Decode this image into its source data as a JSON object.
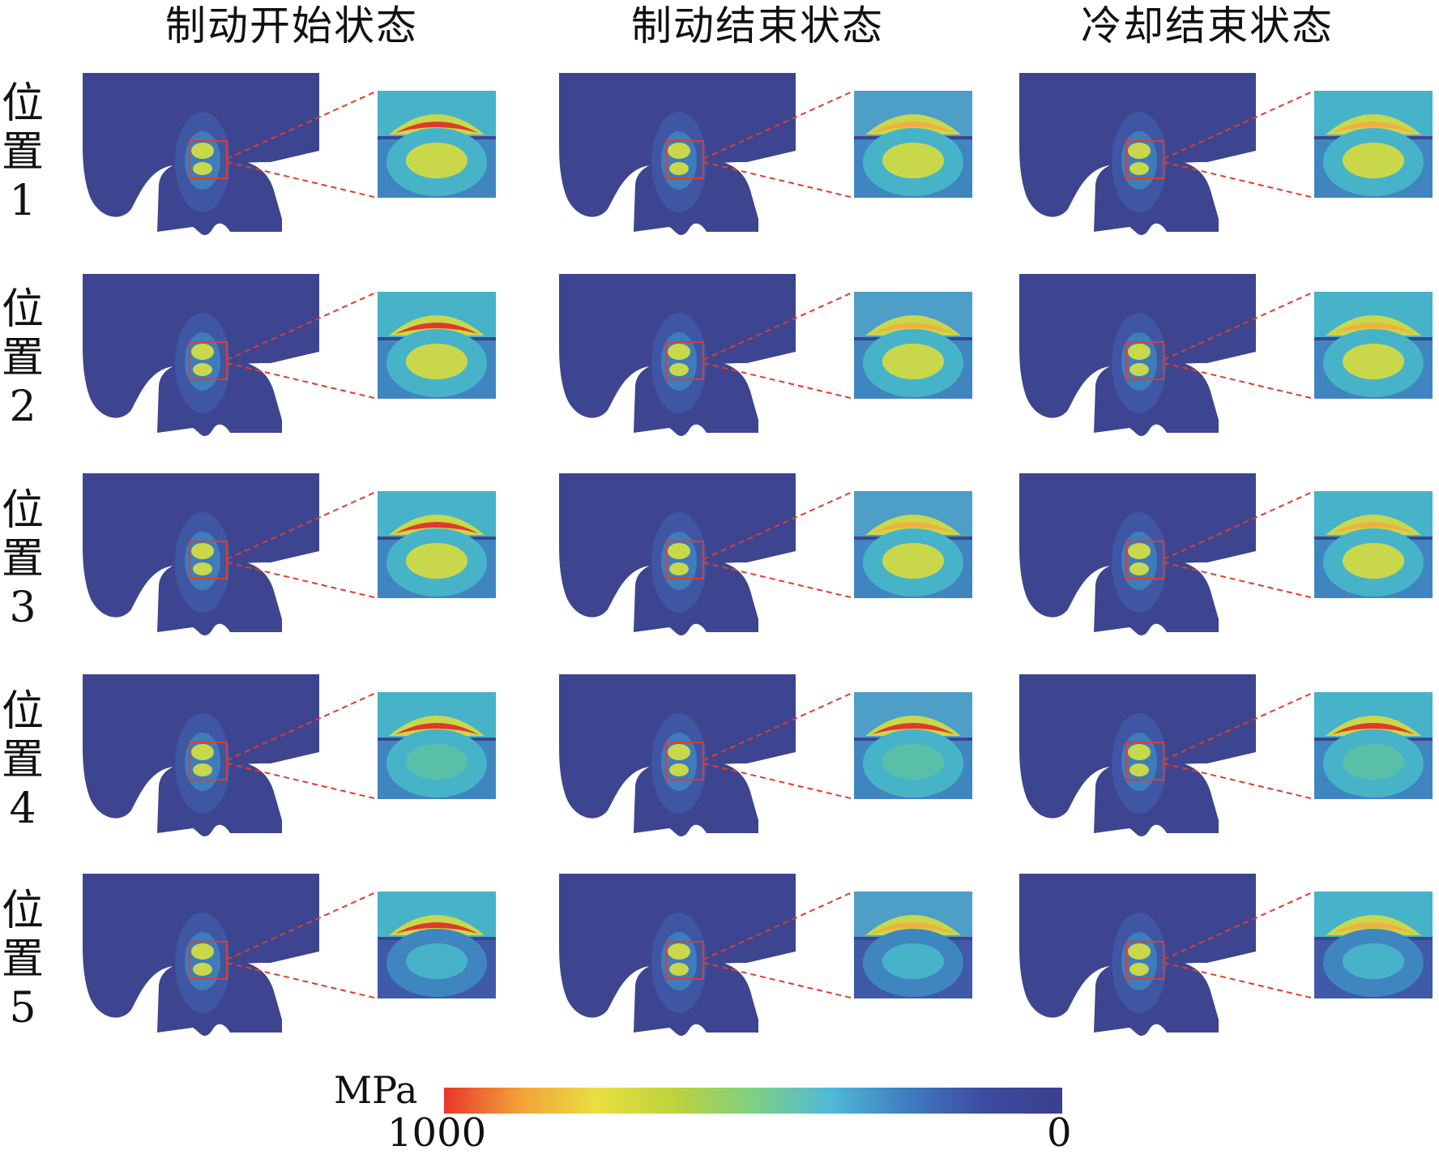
{
  "columns": [
    "制动开始状态",
    "制动结束状态",
    "冷却结束状态"
  ],
  "rows": [
    {
      "label_chars": [
        "位",
        "置",
        "1"
      ]
    },
    {
      "label_chars": [
        "位",
        "置",
        "2"
      ]
    },
    {
      "label_chars": [
        "位",
        "置",
        "3"
      ]
    },
    {
      "label_chars": [
        "位",
        "置",
        "4"
      ]
    },
    {
      "label_chars": [
        "位",
        "置",
        "5"
      ]
    }
  ],
  "colorbar": {
    "unit": "MPa",
    "max_label": "1000",
    "min_label": "0",
    "max_value": 1000,
    "min_value": 0,
    "stops": [
      "#e8372a",
      "#f2a33a",
      "#e9e040",
      "#bcd23c",
      "#7fcf84",
      "#4fb9d8",
      "#3f7cc0",
      "#3d4b9e",
      "#3b3f8f"
    ]
  },
  "colors": {
    "body": "#3d4590",
    "halo1": "#3e5aa8",
    "halo2": "#3f86c0",
    "halo3": "#47b3c9",
    "mid": "#58c0a8",
    "high": "#c9d84a",
    "peak": "#f0b040",
    "max": "#e03a2c",
    "leader": "#e23b2b"
  }
}
